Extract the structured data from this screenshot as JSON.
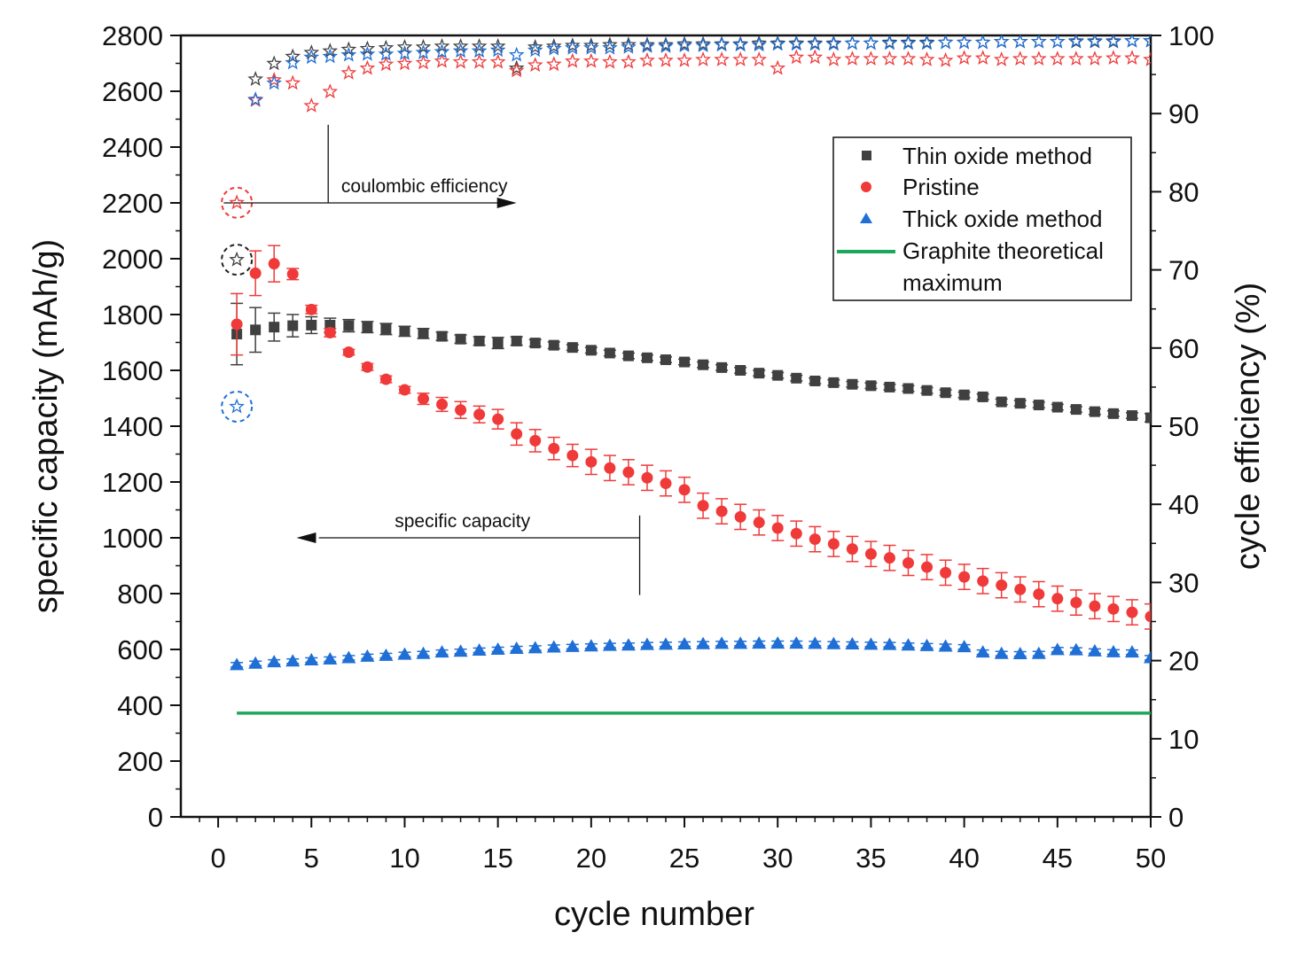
{
  "chart_data": {
    "type": "scatter",
    "xlabel": "cycle number",
    "ylabel_left": "specific capacity (mAh/g)",
    "ylabel_right": "cycle efficiency (%)",
    "xlim": [
      -2,
      50
    ],
    "ylim_left": [
      0,
      2800
    ],
    "ylim_right": [
      0,
      100
    ],
    "x_ticks": [
      0,
      5,
      10,
      15,
      20,
      25,
      30,
      35,
      40,
      45,
      50
    ],
    "y_ticks_left": [
      0,
      200,
      400,
      600,
      800,
      1000,
      1200,
      1400,
      1600,
      1800,
      2000,
      2200,
      2400,
      2600,
      2800
    ],
    "y_ticks_right": [
      0,
      10,
      20,
      30,
      40,
      50,
      60,
      70,
      80,
      90,
      100
    ],
    "grid": false,
    "legend_position": "top-right",
    "legend": [
      {
        "name": "Thin oxide method",
        "marker": "square",
        "color": "#404040"
      },
      {
        "name": "Pristine",
        "marker": "circle",
        "color": "#f03a3a"
      },
      {
        "name": "Thick oxide method",
        "marker": "triangle",
        "color": "#1f6fd6"
      },
      {
        "name": "Graphite theoretical maximum",
        "marker": "line",
        "color": "#1aa85a"
      }
    ],
    "annotations": {
      "coulombic": "coulombic efficiency",
      "capacity": "specific capacity"
    },
    "x": [
      1,
      2,
      3,
      4,
      5,
      6,
      7,
      8,
      9,
      10,
      11,
      12,
      13,
      14,
      15,
      16,
      17,
      18,
      19,
      20,
      21,
      22,
      23,
      24,
      25,
      26,
      27,
      28,
      29,
      30,
      31,
      32,
      33,
      34,
      35,
      36,
      37,
      38,
      39,
      40,
      41,
      42,
      43,
      44,
      45,
      46,
      47,
      48,
      49,
      50
    ],
    "series": [
      {
        "name": "Thin oxide method",
        "axis": "left",
        "color": "#404040",
        "marker": "square",
        "values": [
          1730,
          1745,
          1755,
          1760,
          1762,
          1762,
          1760,
          1755,
          1748,
          1740,
          1732,
          1722,
          1712,
          1705,
          1698,
          1705,
          1698,
          1690,
          1682,
          1672,
          1662,
          1652,
          1645,
          1638,
          1630,
          1620,
          1610,
          1600,
          1590,
          1582,
          1572,
          1562,
          1556,
          1550,
          1545,
          1540,
          1535,
          1528,
          1520,
          1512,
          1505,
          1487,
          1482,
          1476,
          1468,
          1460,
          1452,
          1445,
          1438,
          1430
        ],
        "errors": [
          110,
          80,
          50,
          40,
          30,
          25,
          22,
          20,
          20,
          18,
          18,
          15,
          15,
          15,
          20,
          15,
          12,
          12,
          10,
          10,
          10,
          10,
          10,
          10,
          10,
          10,
          10,
          10,
          10,
          10,
          10,
          10,
          10,
          10,
          10,
          10,
          10,
          10,
          10,
          10,
          10,
          10,
          10,
          10,
          10,
          10,
          10,
          10,
          10,
          15
        ]
      },
      {
        "name": "Pristine",
        "axis": "left",
        "color": "#f03a3a",
        "marker": "circle",
        "values": [
          1765,
          1948,
          1982,
          1945,
          1818,
          1735,
          1665,
          1612,
          1568,
          1530,
          1498,
          1478,
          1458,
          1442,
          1425,
          1372,
          1348,
          1320,
          1295,
          1272,
          1250,
          1235,
          1215,
          1195,
          1172,
          1115,
          1095,
          1075,
          1055,
          1035,
          1015,
          995,
          978,
          960,
          942,
          928,
          910,
          895,
          875,
          860,
          845,
          830,
          815,
          798,
          782,
          768,
          755,
          745,
          733,
          718
        ],
        "errors": [
          110,
          80,
          65,
          20,
          15,
          15,
          10,
          12,
          12,
          12,
          20,
          25,
          30,
          30,
          35,
          40,
          40,
          40,
          40,
          45,
          45,
          45,
          45,
          45,
          45,
          45,
          45,
          45,
          45,
          45,
          45,
          45,
          45,
          45,
          45,
          45,
          45,
          45,
          45,
          45,
          45,
          45,
          45,
          45,
          45,
          45,
          45,
          45,
          45,
          45
        ]
      },
      {
        "name": "Thick oxide method",
        "axis": "left",
        "color": "#1f6fd6",
        "marker": "triangle",
        "values": [
          545,
          550,
          555,
          558,
          562,
          565,
          570,
          575,
          578,
          582,
          585,
          590,
          593,
          597,
          600,
          603,
          605,
          608,
          610,
          612,
          614,
          615,
          617,
          618,
          619,
          620,
          621,
          621,
          622,
          622,
          622,
          621,
          620,
          619,
          618,
          617,
          615,
          613,
          611,
          609,
          590,
          585,
          584,
          585,
          599,
          598,
          594,
          591,
          590,
          570
        ],
        "errors": [
          8,
          8,
          8,
          8,
          8,
          8,
          8,
          8,
          8,
          8,
          8,
          8,
          8,
          8,
          8,
          8,
          8,
          8,
          8,
          8,
          8,
          8,
          8,
          8,
          8,
          8,
          8,
          8,
          8,
          8,
          8,
          8,
          8,
          8,
          8,
          8,
          8,
          8,
          8,
          8,
          8,
          8,
          8,
          8,
          8,
          8,
          8,
          8,
          8,
          8
        ]
      },
      {
        "name": "Graphite theoretical maximum",
        "axis": "left",
        "color": "#1aa85a",
        "marker": "line",
        "value": 372,
        "x_range": [
          1,
          50
        ]
      },
      {
        "name": "Thin oxide method CE",
        "axis": "right",
        "color": "#404040",
        "marker": "star",
        "values": [
          71.3,
          94.4,
          96.4,
          97.3,
          97.8,
          98.0,
          98.2,
          98.3,
          98.4,
          98.5,
          98.5,
          98.6,
          98.6,
          98.6,
          98.6,
          95.8,
          98.5,
          98.6,
          98.7,
          98.7,
          98.8,
          98.8,
          98.8,
          98.8,
          98.9,
          98.9,
          98.9,
          98.9,
          99.0,
          99.0,
          99.0,
          99.0,
          99.0,
          99.0,
          99.0,
          99.1,
          99.1,
          99.1,
          99.1,
          99.1,
          99.1,
          99.2,
          99.2,
          99.2,
          99.2,
          99.2,
          99.2,
          99.2,
          99.3,
          99.3
        ]
      },
      {
        "name": "Pristine CE",
        "axis": "right",
        "color": "#f03a3a",
        "marker": "star",
        "values": [
          78.6,
          91.7,
          94.3,
          93.9,
          91.0,
          92.8,
          95.2,
          95.8,
          96.3,
          96.4,
          96.5,
          96.7,
          96.6,
          96.6,
          96.6,
          95.5,
          96.2,
          96.3,
          96.7,
          96.7,
          96.6,
          96.6,
          96.8,
          96.8,
          96.8,
          96.9,
          96.9,
          96.9,
          96.9,
          95.8,
          97.2,
          97.2,
          96.9,
          97.0,
          97.0,
          97.0,
          97.0,
          96.9,
          96.8,
          97.1,
          97.1,
          96.9,
          97.0,
          97.0,
          97.0,
          97.0,
          97.0,
          97.1,
          97.1,
          96.9
        ]
      },
      {
        "name": "Thick oxide method CE",
        "axis": "right",
        "color": "#1f6fd6",
        "marker": "star",
        "values": [
          52.5,
          91.8,
          93.9,
          96.5,
          97.2,
          97.3,
          97.5,
          97.6,
          97.6,
          97.7,
          97.8,
          97.9,
          98.0,
          98.0,
          98.1,
          97.5,
          98.1,
          98.3,
          98.4,
          98.4,
          98.4,
          98.5,
          98.6,
          98.6,
          98.7,
          98.7,
          98.8,
          98.8,
          98.8,
          98.9,
          98.9,
          98.9,
          98.9,
          99.0,
          99.0,
          99.0,
          99.0,
          99.0,
          99.1,
          99.1,
          99.1,
          99.2,
          99.2,
          99.2,
          99.2,
          99.3,
          99.3,
          99.3,
          99.3,
          99.3
        ]
      }
    ]
  }
}
